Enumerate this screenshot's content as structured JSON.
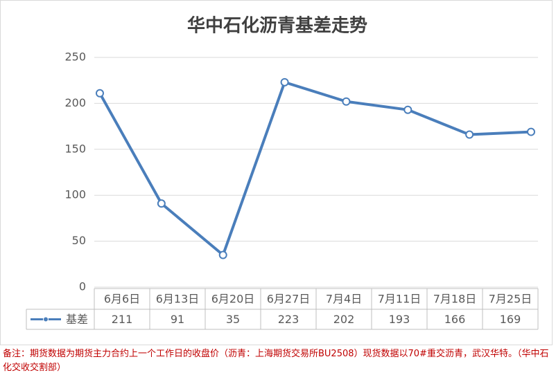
{
  "chart_data": {
    "type": "line",
    "title": "华中石化沥青基差走势",
    "categories": [
      "6月6日",
      "6月13日",
      "6月20日",
      "6月27日",
      "7月4日",
      "7月11日",
      "7月18日",
      "7月25日"
    ],
    "series": [
      {
        "name": "基差",
        "color": "#4a7ebb",
        "values": [
          211,
          91,
          35,
          223,
          202,
          193,
          166,
          169
        ]
      }
    ],
    "ylim": [
      0,
      250
    ],
    "yticks": [
      0,
      50,
      100,
      150,
      200,
      250
    ],
    "grid": true,
    "note": "备注：期货数据为期货主力合约上一个工作日的收盘价（沥青：上海期货交易所BU2508）现货数据以70#重交沥青，武汉华特。（华中石化交收交割部）"
  }
}
